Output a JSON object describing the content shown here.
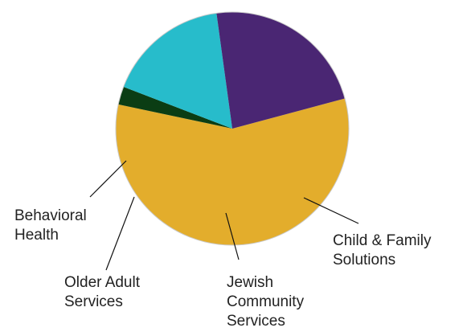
{
  "chart_data": {
    "type": "pie",
    "title": "",
    "slices": [
      {
        "label_lines": [
          "Behavioral",
          "Health"
        ],
        "value": 57.5,
        "color": "#e3ad2c"
      },
      {
        "label_lines": [
          "Older Adult",
          "Services"
        ],
        "value": 2.5,
        "color": "#0b3d14"
      },
      {
        "label_lines": [
          "Jewish",
          "Community",
          "Services"
        ],
        "value": 17.0,
        "color": "#27bccb"
      },
      {
        "label_lines": [
          "Child & Family",
          "Solutions"
        ],
        "value": 23.0,
        "color": "#4a2673"
      }
    ],
    "start_angle_deg": -15,
    "legend": "none"
  }
}
